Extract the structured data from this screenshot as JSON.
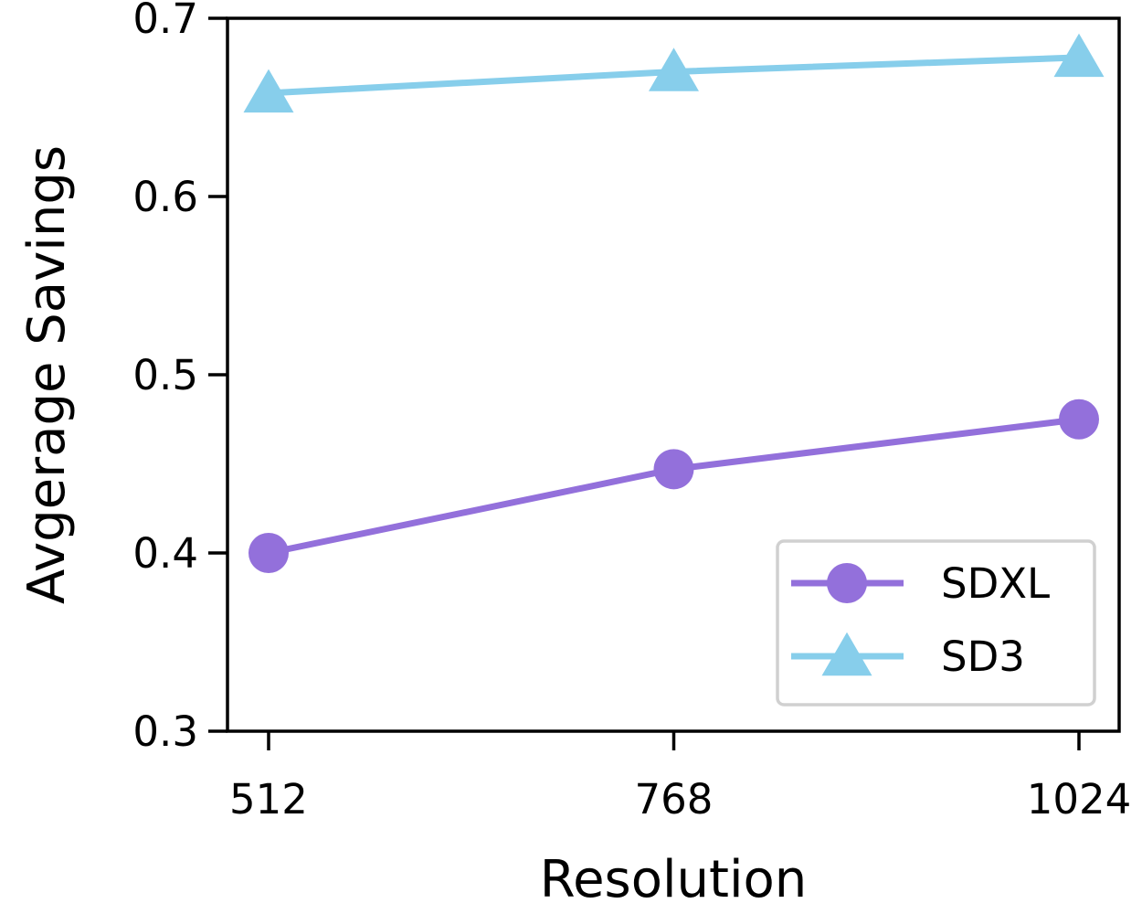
{
  "chart_data": {
    "type": "line",
    "title": "",
    "xlabel": "Resolution",
    "ylabel": "Avgerage Savings",
    "categories": [
      "512",
      "768",
      "1024"
    ],
    "ylim": [
      0.3,
      0.7
    ],
    "yticks": [
      0.3,
      0.4,
      0.5,
      0.6,
      0.7
    ],
    "ytick_labels": [
      "0.3",
      "0.4",
      "0.5",
      "0.6",
      "0.7"
    ],
    "grid": false,
    "legend_position": "lower-right",
    "series": [
      {
        "name": "SDXL",
        "values": [
          0.4,
          0.447,
          0.475
        ],
        "color": "#9370DB",
        "marker": "circle"
      },
      {
        "name": "SD3",
        "values": [
          0.658,
          0.67,
          0.678
        ],
        "color": "#87CEEB",
        "marker": "triangle"
      }
    ]
  }
}
